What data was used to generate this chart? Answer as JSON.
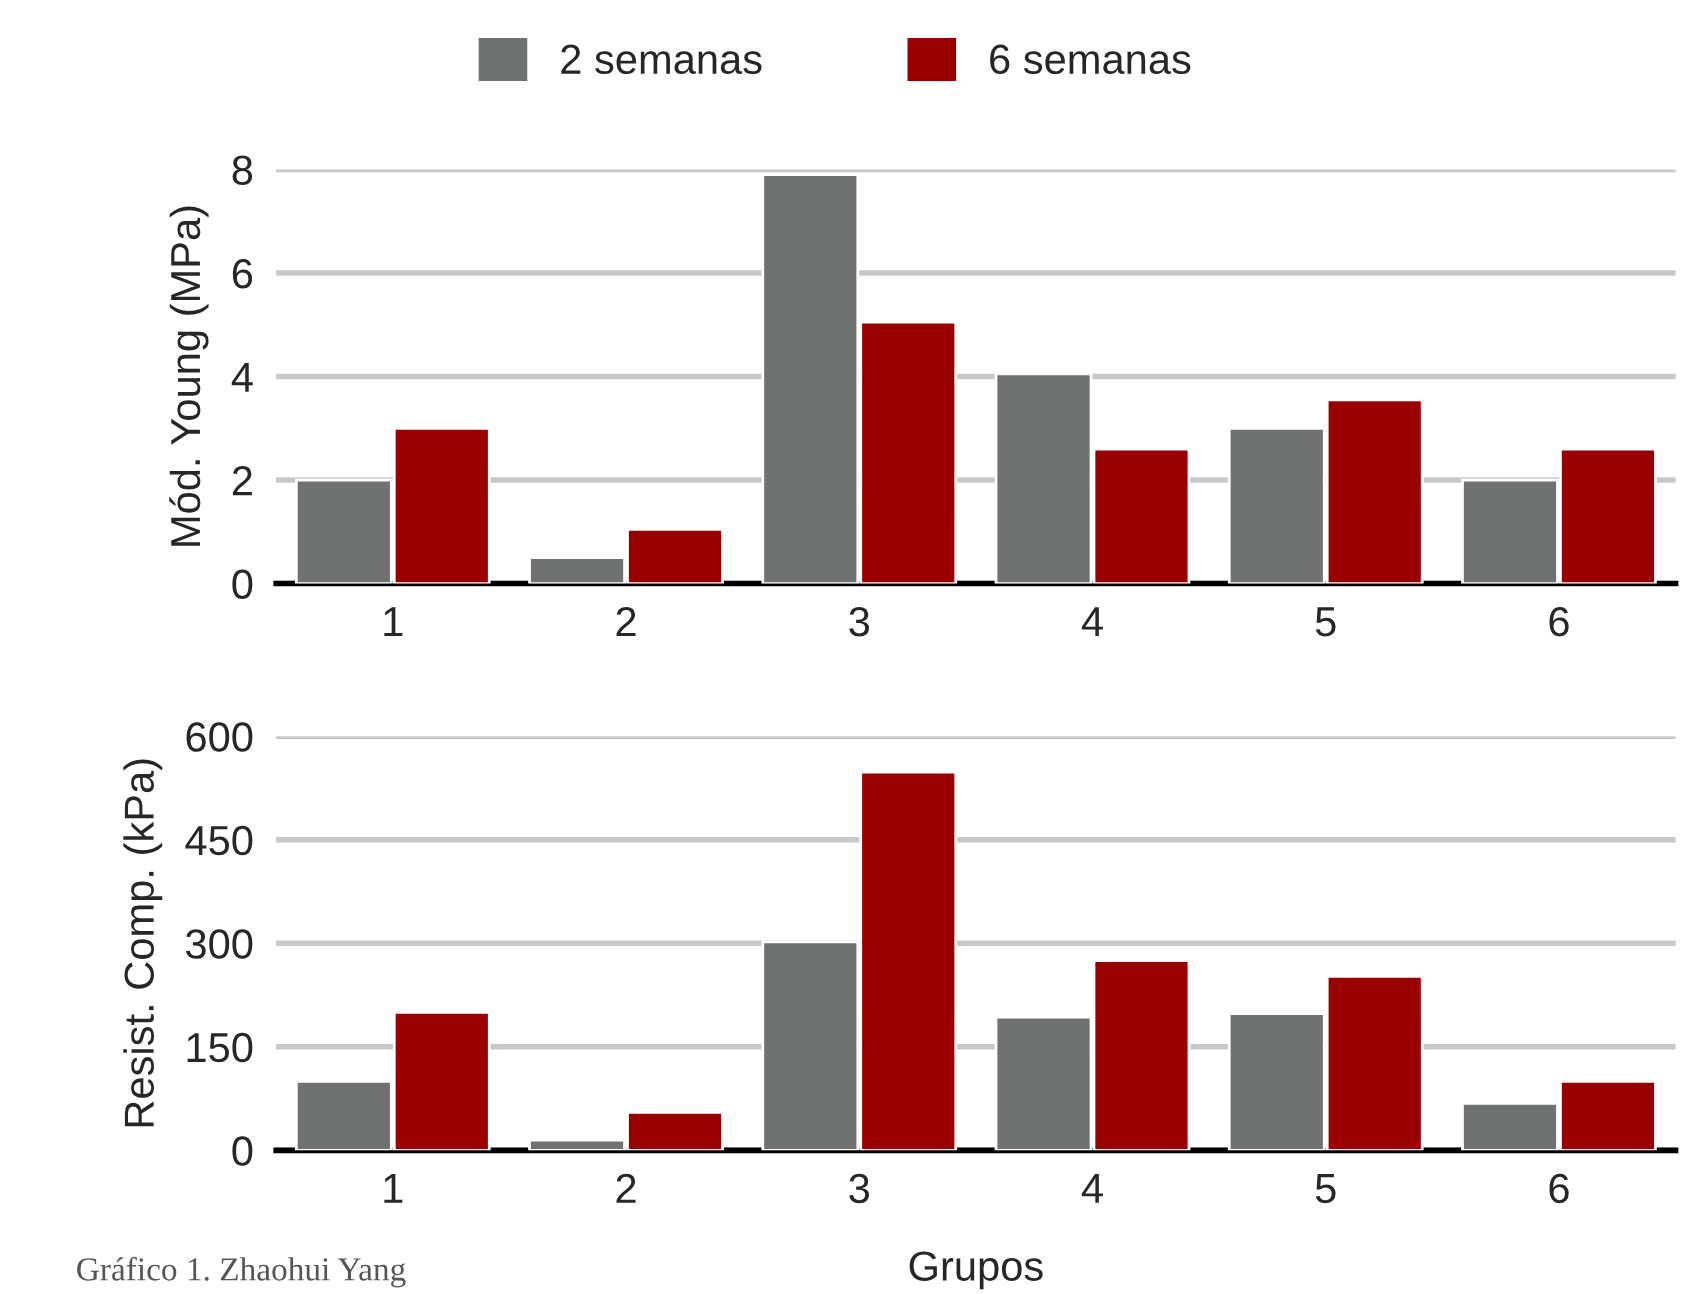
{
  "chart_data": [
    {
      "type": "bar",
      "categories": [
        "1",
        "2",
        "3",
        "4",
        "5",
        "6"
      ],
      "ylabel": "Mód. Young (MPa)",
      "ylim": [
        0,
        8
      ],
      "yticks": [
        0,
        2,
        4,
        6,
        8
      ],
      "grid": "y",
      "legend": "top",
      "series": [
        {
          "name": "2 semanas",
          "color": "#6f7270",
          "values": [
            2,
            0.5,
            7.9,
            4.05,
            3,
            2
          ]
        },
        {
          "name": "6 semanas",
          "color": "#9b0000",
          "values": [
            3,
            1.05,
            5.05,
            2.6,
            3.55,
            2.6
          ]
        }
      ]
    },
    {
      "type": "bar",
      "categories": [
        "1",
        "2",
        "3",
        "4",
        "5",
        "6"
      ],
      "ylabel": "Resist. Comp. (kPa)",
      "xlabel": "Grupos",
      "ylim": [
        0,
        600
      ],
      "yticks": [
        0,
        150,
        300,
        450,
        600
      ],
      "grid": "y",
      "annotations": [
        "Gráfico 1. Zhaohui Yang"
      ],
      "series": [
        {
          "color": "#6f7270",
          "values": [
            100,
            15,
            302,
            193,
            198,
            68
          ]
        },
        {
          "color": "#9b0000",
          "values": [
            200,
            55,
            548,
            275,
            252,
            100
          ]
        }
      ]
    }
  ]
}
